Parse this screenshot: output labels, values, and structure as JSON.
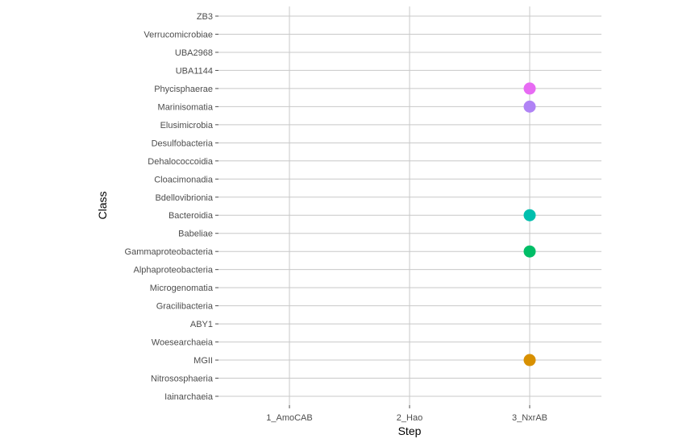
{
  "chart_data": {
    "type": "scatter",
    "xlabel": "Step",
    "ylabel": "Class",
    "x_categories": [
      "1_AmoCAB",
      "2_Hao",
      "3_NxrAB"
    ],
    "y_categories": [
      "Iainarchaeia",
      "Nitrososphaeria",
      "MGII",
      "Woesearchaeia",
      "ABY1",
      "Gracilibacteria",
      "Microgenomatia",
      "Alphaproteobacteria",
      "Gammaproteobacteria",
      "Babeliae",
      "Bacteroidia",
      "Bdellovibrionia",
      "Cloacimonadia",
      "Dehalococcoidia",
      "Desulfobacteria",
      "Elusimicrobia",
      "Marinisomatia",
      "Phycisphaerae",
      "UBA1144",
      "UBA2968",
      "Verrucomicrobiae",
      "ZB3"
    ],
    "points": [
      {
        "x": "3_NxrAB",
        "y": "Phycisphaerae",
        "color": "#e76bf3"
      },
      {
        "x": "3_NxrAB",
        "y": "Marinisomatia",
        "color": "#b083f5"
      },
      {
        "x": "3_NxrAB",
        "y": "Bacteroidia",
        "color": "#00bfae"
      },
      {
        "x": "3_NxrAB",
        "y": "Gammaproteobacteria",
        "color": "#00be67"
      },
      {
        "x": "3_NxrAB",
        "y": "MGII",
        "color": "#d89000"
      }
    ],
    "grid": true,
    "legend": "none"
  }
}
